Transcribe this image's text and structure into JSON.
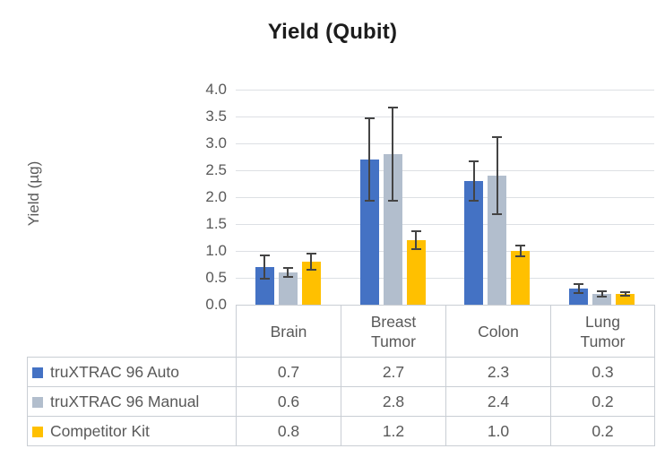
{
  "title": "Yield (Qubit)",
  "y_axis": {
    "label": "Yield (µg)",
    "ticks": [
      "4.0",
      "3.5",
      "3.0",
      "2.5",
      "2.0",
      "1.5",
      "1.0",
      "0.5",
      "0.0"
    ],
    "min": 0.0,
    "max": 4.0,
    "step": 0.5
  },
  "chart_data": {
    "type": "bar",
    "title": "Yield (Qubit)",
    "xlabel": "",
    "ylabel": "Yield (µg)",
    "ylim": [
      0.0,
      4.0
    ],
    "ytick_step": 0.5,
    "grid": true,
    "legend_position": "data-table-left",
    "categories": [
      "Brain",
      "Breast Tumor",
      "Colon",
      "Lung Tumor"
    ],
    "series": [
      {
        "name": "truXTRAC 96 Auto",
        "color": "#4472C4",
        "values": [
          0.7,
          2.7,
          2.3,
          0.3
        ],
        "errors": [
          0.22,
          0.76,
          0.37,
          0.08
        ]
      },
      {
        "name": "truXTRAC 96 Manual",
        "color": "#B2BECD",
        "values": [
          0.6,
          2.8,
          2.4,
          0.2
        ],
        "errors": [
          0.08,
          0.86,
          0.72,
          0.05
        ]
      },
      {
        "name": "Competitor Kit",
        "color": "#FFC000",
        "values": [
          0.8,
          1.2,
          1.0,
          0.2
        ],
        "errors": [
          0.15,
          0.17,
          0.1,
          0.04
        ]
      }
    ],
    "error_bar_color": "#444444"
  },
  "table": {
    "column_headers": [
      "Brain",
      "Breast Tumor",
      "Colon",
      "Lung Tumor"
    ],
    "rows": [
      {
        "legend": "truXTRAC 96 Auto",
        "swatch": "#4472C4",
        "values": [
          "0.7",
          "2.7",
          "2.3",
          "0.3"
        ]
      },
      {
        "legend": "truXTRAC 96 Manual",
        "swatch": "#B2BECD",
        "values": [
          "0.6",
          "2.8",
          "2.4",
          "0.2"
        ]
      },
      {
        "legend": "Competitor Kit",
        "swatch": "#FFC000",
        "values": [
          "0.8",
          "1.2",
          "1.0",
          "0.2"
        ]
      }
    ]
  },
  "colors": {
    "gridline": "#dde0e4",
    "axis_text": "#595959",
    "table_border": "#c9ced4",
    "title_text": "#1c1c1c",
    "error_bar": "#444444"
  }
}
